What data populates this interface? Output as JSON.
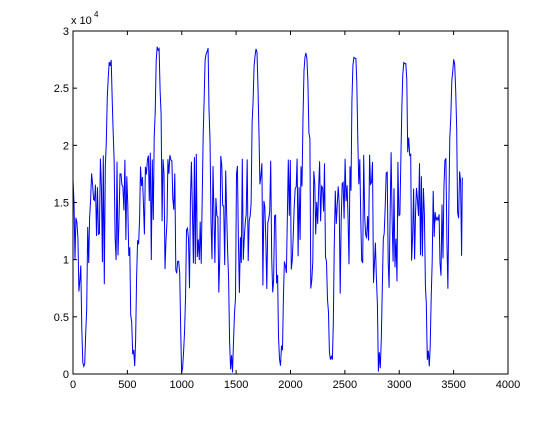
{
  "chart_data": {
    "type": "line",
    "title": "",
    "xlabel": "",
    "ylabel": "",
    "xlim": [
      0,
      4000
    ],
    "ylim": [
      0,
      30000
    ],
    "x_ticks": [
      "0",
      "500",
      "1000",
      "1500",
      "2000",
      "2500",
      "3000",
      "3500",
      "4000"
    ],
    "y_ticks": [
      "0",
      "0.5",
      "1",
      "1.5",
      "2",
      "2.5",
      "3"
    ],
    "y_exponent_label": "x 10",
    "y_exponent_power": "4",
    "grid": false,
    "legend": "none",
    "series_color": "#0000ff",
    "series": [
      {
        "period_x": 452,
        "x_start": 0,
        "x_end": 3580,
        "y_range": [
          0,
          28800
        ],
        "peaks": [
          {
            "x": 340,
            "y": 28000
          },
          {
            "x": 780,
            "y": 28700
          },
          {
            "x": 1230,
            "y": 28800
          },
          {
            "x": 1680,
            "y": 28600
          },
          {
            "x": 2140,
            "y": 28700
          },
          {
            "x": 2590,
            "y": 28700
          },
          {
            "x": 3050,
            "y": 28300
          },
          {
            "x": 3500,
            "y": 27700
          }
        ],
        "troughs": [
          {
            "x": 100,
            "y": 500
          },
          {
            "x": 560,
            "y": 0
          },
          {
            "x": 1010,
            "y": 0
          },
          {
            "x": 1460,
            "y": 0
          },
          {
            "x": 1910,
            "y": 0
          },
          {
            "x": 2370,
            "y": 0
          },
          {
            "x": 2820,
            "y": 0
          },
          {
            "x": 3270,
            "y": 500
          }
        ],
        "plateau_band": [
          10000,
          18500
        ]
      }
    ]
  }
}
